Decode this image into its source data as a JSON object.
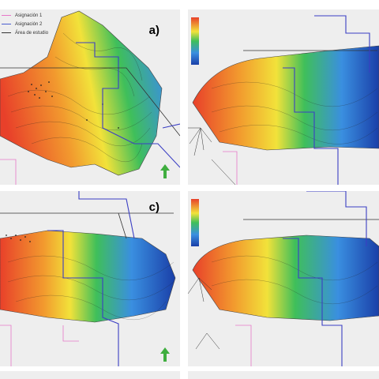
{
  "figure": {
    "panels": [
      {
        "id": "a",
        "label": "a)"
      },
      {
        "id": "b",
        "label": ""
      },
      {
        "id": "c",
        "label": "c)"
      },
      {
        "id": "d",
        "label": ""
      }
    ],
    "legend": {
      "items": [
        {
          "label": "Asignación 1",
          "color": "#e678c8"
        },
        {
          "label": "Asignación 2",
          "color": "#4a5ecf"
        },
        {
          "label": "Área de estudio",
          "color": "#333333"
        }
      ]
    },
    "colors": {
      "hot": "#e8402a",
      "warm": "#f29a2e",
      "mid": "#f2e23a",
      "green": "#3fbf5a",
      "cool": "#3a8fe0",
      "cold": "#1a3fa8",
      "north_arrow": "#3fae3f",
      "boundary": "#3b3fc4",
      "assignment": "#e678c8"
    },
    "icons": [
      "north-arrow-icon"
    ]
  }
}
